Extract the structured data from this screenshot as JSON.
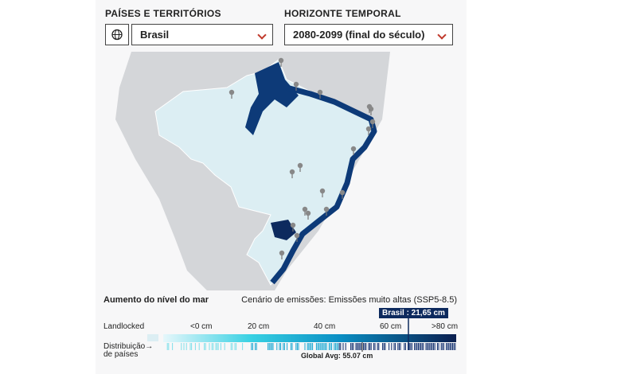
{
  "selectors": {
    "country": {
      "label": "PAÍSES E TERRITÓRIOS",
      "value": "Brasil"
    },
    "horizon": {
      "label": "HORIZONTE TEMPORAL",
      "value": "2080-2099 (final do século)"
    }
  },
  "legend": {
    "title": "Aumento do nível do mar",
    "scenario": "Cenário de emissões: Emissões muito altas (SSP5-8.5)",
    "country_marker": "Brasil : 21,65 cm",
    "landlocked": "Landlocked",
    "scale_labels": [
      "<0 cm",
      "20 cm",
      "40 cm",
      "60 cm",
      ">80 cm"
    ],
    "distribution": [
      "Distribuição",
      "de países"
    ],
    "global_avg": "Global Avg: 55.07 cm"
  }
}
